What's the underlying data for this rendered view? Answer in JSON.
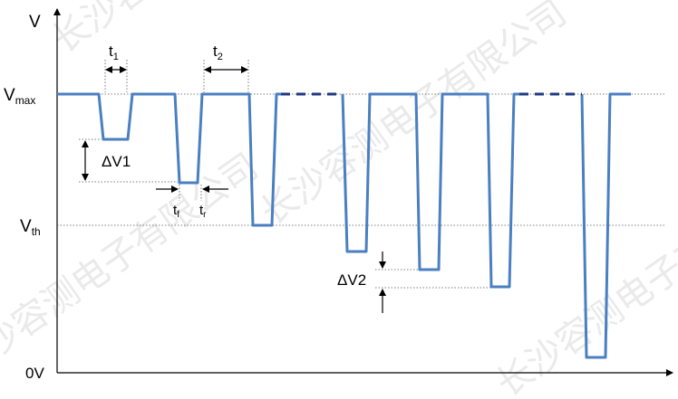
{
  "axis_labels": {
    "y_axis": "V",
    "vmax": "V",
    "vmax_sub": "max",
    "vth": "V",
    "vth_sub": "th",
    "zero": "0V"
  },
  "annotations": {
    "t1": "t",
    "t1_sub": "1",
    "t2": "t",
    "t2_sub": "2",
    "tf": "t",
    "tf_sub": "f",
    "tr": "t",
    "tr_sub": "r",
    "dv1": "ΔV1",
    "dv2": "ΔV2"
  },
  "watermark": "长沙容测电子有限公司",
  "colors": {
    "waveform": "#4a7fc1",
    "dashed_segment": "#1f3a80",
    "axis": "#000000",
    "guide": "#555555"
  }
}
